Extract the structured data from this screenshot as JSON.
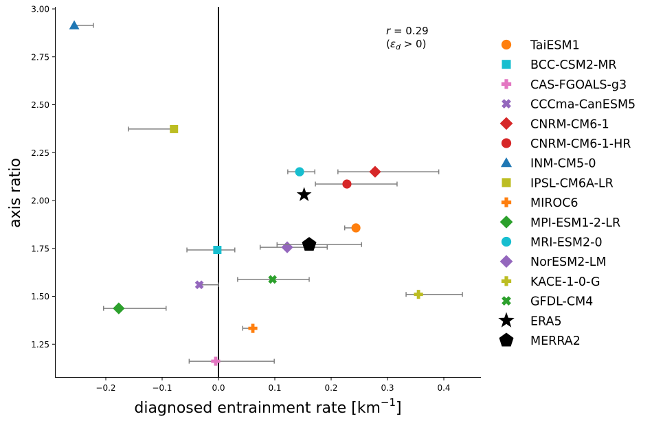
{
  "chart_data": {
    "type": "scatter",
    "title": "",
    "xlabel": "diagnosed entrainment rate [km",
    "xlabel_sup": "−1",
    "xlabel_tail": "]",
    "ylabel": "axis ratio",
    "xlim": [
      -0.29,
      0.47
    ],
    "ylim": [
      1.08,
      3.01
    ],
    "xticks": [
      -0.2,
      -0.1,
      0.0,
      0.1,
      0.2,
      0.3,
      0.4
    ],
    "xtick_labels": [
      "−0.2",
      "−0.1",
      "0.0",
      "0.1",
      "0.2",
      "0.3",
      "0.4"
    ],
    "yticks": [
      1.25,
      1.5,
      1.75,
      2.0,
      2.25,
      2.5,
      2.75,
      3.0
    ],
    "ytick_labels": [
      "1.25",
      "1.50",
      "1.75",
      "2.00",
      "2.25",
      "2.50",
      "2.75",
      "3.00"
    ],
    "vline_x": 0.0,
    "grid": false,
    "legend_position": "outside-right",
    "annotation": {
      "line1": "r = 0.29",
      "line2": "(εd > 0)"
    },
    "series": [
      {
        "name": "TaiESM1",
        "marker": "circle",
        "color": "#ff7f0e",
        "x": 0.244,
        "y": 1.857,
        "xerr": [
          0.224,
          0.244
        ]
      },
      {
        "name": "BCC-CSM2-MR",
        "marker": "square",
        "color": "#17becf",
        "x": -0.002,
        "y": 1.742,
        "xerr": [
          -0.056,
          0.029
        ]
      },
      {
        "name": "CAS-FGOALS-g3",
        "marker": "plus",
        "color": "#e377c2",
        "x": -0.005,
        "y": 1.161,
        "xerr": [
          -0.052,
          0.099
        ]
      },
      {
        "name": "CCCma-CanESM5",
        "marker": "x",
        "color": "#9467bd",
        "x": -0.034,
        "y": 1.56,
        "xerr": [
          -0.034,
          0.0
        ]
      },
      {
        "name": "CNRM-CM6-1",
        "marker": "diamond",
        "color": "#d62728",
        "x": 0.278,
        "y": 2.15,
        "xerr": [
          0.212,
          0.391
        ]
      },
      {
        "name": "CNRM-CM6-1-HR",
        "marker": "circle",
        "color": "#d62728",
        "x": 0.228,
        "y": 2.086,
        "xerr": [
          0.172,
          0.317
        ]
      },
      {
        "name": "INM-CM5-0",
        "marker": "triangle",
        "color": "#1f77b4",
        "x": -0.256,
        "y": 2.914,
        "xerr": [
          -0.256,
          -0.222
        ]
      },
      {
        "name": "IPSL-CM6A-LR",
        "marker": "square",
        "color": "#bcbd22",
        "x": -0.079,
        "y": 2.373,
        "xerr": [
          -0.16,
          -0.079
        ]
      },
      {
        "name": "MIROC6",
        "marker": "plus",
        "color": "#ff7f0e",
        "x": 0.061,
        "y": 1.333,
        "xerr": [
          0.043,
          0.061
        ]
      },
      {
        "name": "MPI-ESM1-2-LR",
        "marker": "diamond",
        "color": "#2ca02c",
        "x": -0.177,
        "y": 1.437,
        "xerr": [
          -0.204,
          -0.093
        ]
      },
      {
        "name": "MRI-ESM2-0",
        "marker": "circle",
        "color": "#17becf",
        "x": 0.144,
        "y": 2.15,
        "xerr": [
          0.123,
          0.171
        ]
      },
      {
        "name": "NorESM2-LM",
        "marker": "diamond",
        "color": "#9467bd",
        "x": 0.122,
        "y": 1.756,
        "xerr": [
          0.074,
          0.193
        ]
      },
      {
        "name": "KACE-1-0-G",
        "marker": "plus",
        "color": "#bcbd22",
        "x": 0.355,
        "y": 1.51,
        "xerr": [
          0.333,
          0.433
        ]
      },
      {
        "name": "GFDL-CM4",
        "marker": "x",
        "color": "#2ca02c",
        "x": 0.096,
        "y": 1.588,
        "xerr": [
          0.034,
          0.161
        ]
      },
      {
        "name": "ERA5",
        "marker": "star",
        "color": "#000000",
        "x": 0.152,
        "y": 2.03,
        "xerr": null
      },
      {
        "name": "MERRA2",
        "marker": "pentagon",
        "color": "#000000",
        "x": 0.161,
        "y": 1.77,
        "xerr": [
          0.104,
          0.254
        ]
      }
    ]
  }
}
